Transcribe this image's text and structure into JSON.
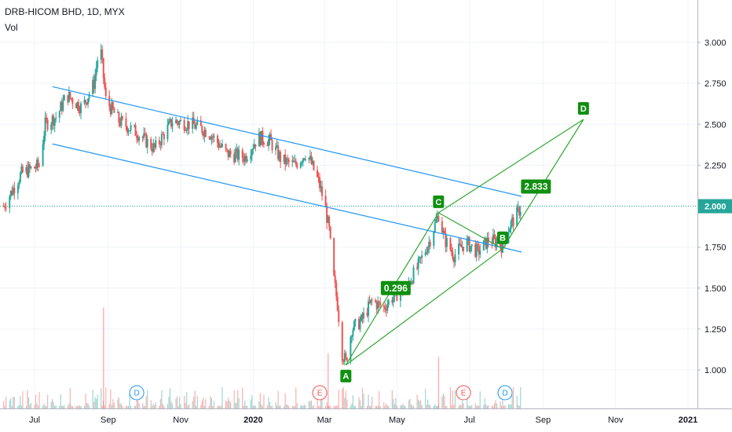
{
  "header": {
    "symbol_line": "DRB-HICOM BHD, 1D, MYX",
    "indicator": "Vol"
  },
  "chart_data": {
    "type": "candlestick",
    "yaxis": {
      "min": 0.8,
      "max": 3.15,
      "ticks": [
        "1.000",
        "1.250",
        "1.500",
        "1.750",
        "2.000",
        "2.250",
        "2.500",
        "2.750",
        "3.000"
      ]
    },
    "xaxis": {
      "labels": [
        {
          "text": "Jul",
          "date": "2019-07-01",
          "bold": false
        },
        {
          "text": "Sep",
          "date": "2019-09-01",
          "bold": false
        },
        {
          "text": "Nov",
          "date": "2019-11-01",
          "bold": false
        },
        {
          "text": "2020",
          "date": "2020-01-01",
          "bold": true
        },
        {
          "text": "Mar",
          "date": "2020-03-01",
          "bold": false
        },
        {
          "text": "May",
          "date": "2020-05-01",
          "bold": false
        },
        {
          "text": "Jul",
          "date": "2020-07-01",
          "bold": false
        },
        {
          "text": "Sep",
          "date": "2020-09-01",
          "bold": false
        },
        {
          "text": "Nov",
          "date": "2020-11-01",
          "bold": false
        },
        {
          "text": "2021",
          "date": "2021-01-01",
          "bold": true
        }
      ]
    },
    "last_price": "2.000",
    "price_path": [
      [
        "2019-06-05",
        2.0
      ],
      [
        "2019-06-20",
        2.2
      ],
      [
        "2019-07-05",
        2.25
      ],
      [
        "2019-07-10",
        2.5
      ],
      [
        "2019-07-20",
        2.55
      ],
      [
        "2019-07-28",
        2.68
      ],
      [
        "2019-08-10",
        2.6
      ],
      [
        "2019-08-20",
        2.75
      ],
      [
        "2019-08-25",
        3.0
      ],
      [
        "2019-08-30",
        2.65
      ],
      [
        "2019-09-10",
        2.52
      ],
      [
        "2019-09-25",
        2.45
      ],
      [
        "2019-10-10",
        2.35
      ],
      [
        "2019-10-25",
        2.52
      ],
      [
        "2019-11-10",
        2.5
      ],
      [
        "2019-11-25",
        2.45
      ],
      [
        "2019-12-10",
        2.32
      ],
      [
        "2019-12-25",
        2.3
      ],
      [
        "2020-01-05",
        2.42
      ],
      [
        "2020-01-15",
        2.4
      ],
      [
        "2020-01-25",
        2.28
      ],
      [
        "2020-02-05",
        2.25
      ],
      [
        "2020-02-15",
        2.33
      ],
      [
        "2020-02-25",
        2.15
      ],
      [
        "2020-03-01",
        2.02
      ],
      [
        "2020-03-05",
        1.85
      ],
      [
        "2020-03-08",
        1.6
      ],
      [
        "2020-03-12",
        1.4
      ],
      [
        "2020-03-16",
        1.1
      ],
      [
        "2020-03-19",
        1.05
      ],
      [
        "2020-03-24",
        1.25
      ],
      [
        "2020-04-01",
        1.3
      ],
      [
        "2020-04-10",
        1.42
      ],
      [
        "2020-04-20",
        1.38
      ],
      [
        "2020-04-28",
        1.45
      ],
      [
        "2020-05-08",
        1.5
      ],
      [
        "2020-05-18",
        1.62
      ],
      [
        "2020-05-28",
        1.78
      ],
      [
        "2020-06-05",
        1.95
      ],
      [
        "2020-06-10",
        1.8
      ],
      [
        "2020-06-18",
        1.7
      ],
      [
        "2020-06-28",
        1.78
      ],
      [
        "2020-07-08",
        1.72
      ],
      [
        "2020-07-18",
        1.8
      ],
      [
        "2020-07-28",
        1.76
      ],
      [
        "2020-08-04",
        1.88
      ],
      [
        "2020-08-10",
        1.95
      ],
      [
        "2020-08-14",
        2.0
      ]
    ],
    "volume_spikes": [
      {
        "date": "2019-08-28",
        "value": 0.55
      },
      {
        "date": "2020-03-04",
        "value": 0.3
      },
      {
        "date": "2020-06-05",
        "value": 0.28
      }
    ],
    "channel": {
      "upper": [
        [
          "2019-07-16",
          2.73
        ],
        [
          "2020-08-14",
          2.06
        ]
      ],
      "lower": [
        [
          "2019-07-16",
          2.38
        ],
        [
          "2020-08-14",
          1.72
        ]
      ]
    },
    "pattern": {
      "points": [
        {
          "label": "A",
          "date": "2020-03-19",
          "price": 1.03
        },
        {
          "label": "C",
          "date": "2020-06-05",
          "price": 1.96
        },
        {
          "label": "B",
          "date": "2020-07-29",
          "price": 1.74
        },
        {
          "label": "D",
          "date": "2020-10-05",
          "price": 2.53
        }
      ],
      "ratios": [
        {
          "text": "0.296",
          "date": "2020-04-30",
          "price": 1.5
        },
        {
          "text": "2.833",
          "date": "2020-08-26",
          "price": 2.12
        }
      ]
    },
    "events": [
      {
        "text": "D",
        "date": "2019-09-25",
        "kind": "dividend"
      },
      {
        "text": "E",
        "date": "2020-02-26",
        "kind": "earnings"
      },
      {
        "text": "E",
        "date": "2020-06-26",
        "kind": "earnings"
      },
      {
        "text": "D",
        "date": "2020-07-31",
        "kind": "dividend"
      }
    ],
    "colors": {
      "up": "#26a69a",
      "down": "#ef5350",
      "channel": "#2196f3",
      "pattern": "#2fa82f",
      "label_bg": "#109010",
      "price_line": "#26a69a",
      "dividend": "#2196f3",
      "earnings": "#ef5350",
      "grid": "#f0f3fa"
    }
  }
}
